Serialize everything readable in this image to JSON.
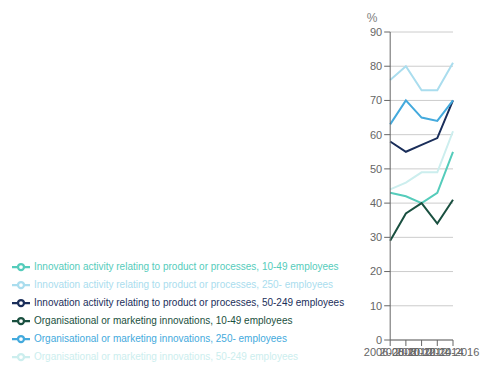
{
  "chart_data": {
    "type": "line",
    "ylabel": "%",
    "categories": [
      "2006-2008",
      "2008-2010",
      "2010-2012",
      "2012-2014",
      "2014-2016"
    ],
    "series": [
      {
        "name": "Innovation activity relating to product or processes, 10-49 employees",
        "color": "#55CCBB",
        "values": [
          43,
          42,
          40,
          43,
          55
        ]
      },
      {
        "name": "Innovation activity relating to product or processes, 50-249 employees",
        "color": "#1A2E5A",
        "values": [
          58,
          55,
          57,
          59,
          70
        ]
      },
      {
        "name": "Innovation activity relating to product or processes, 250- employees",
        "color": "#AADDEE",
        "values": [
          76,
          80,
          73,
          73,
          81
        ]
      },
      {
        "name": "Organisational or marketing innovations, 10-49 employees",
        "color": "#1A5040",
        "values": [
          29,
          37,
          40,
          34,
          41
        ]
      },
      {
        "name": "Organisational or marketing innovations, 50-249 employees",
        "color": "#CCEEEE",
        "values": [
          44,
          46,
          49,
          49,
          61
        ]
      },
      {
        "name": "Organisational or marketing innovations, 250- employees",
        "color": "#44AADD",
        "values": [
          63,
          70,
          65,
          64,
          70
        ]
      }
    ],
    "ylim": [
      0,
      90
    ],
    "yticks": [
      0,
      10,
      20,
      30,
      40,
      50,
      60,
      70,
      80,
      90
    ],
    "grid": true,
    "legend": "bottom"
  }
}
